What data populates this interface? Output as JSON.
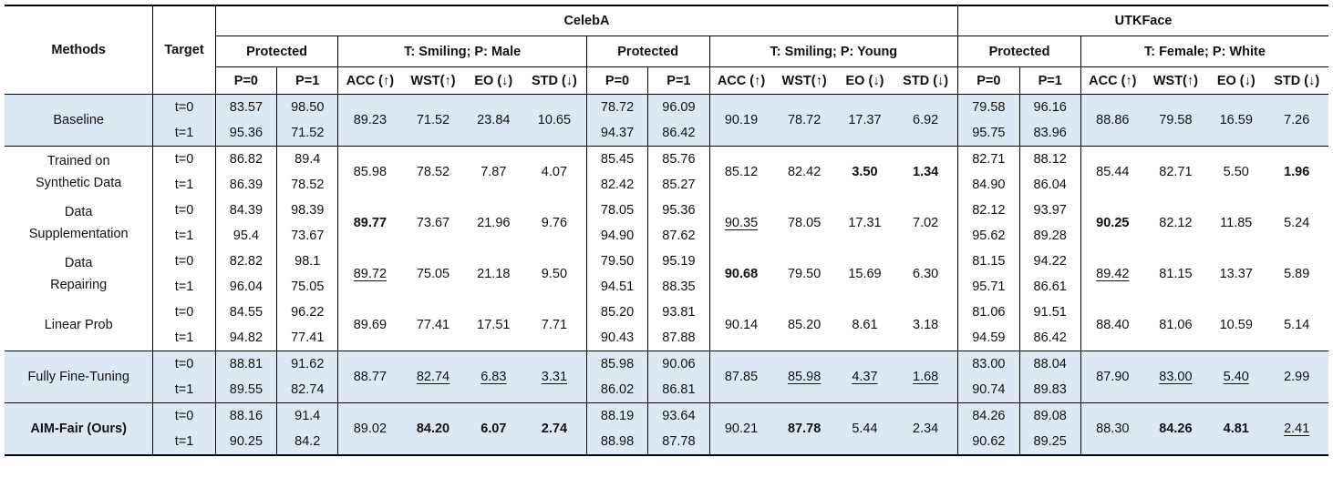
{
  "header": {
    "methods": "Methods",
    "target": "Target",
    "datasets": [
      "CelebA",
      "UTKFace"
    ],
    "protected": "Protected",
    "tasks": [
      "T: Smiling; P: Male",
      "T: Smiling; P: Young",
      "T: Female; P: White"
    ],
    "p0": "P=0",
    "p1": "P=1",
    "metrics": [
      "ACC (↑)",
      "WST(↑)",
      "EO (↓)",
      "STD (↓)"
    ]
  },
  "t_labels": [
    "t=0",
    "t=1"
  ],
  "rows": [
    {
      "method": [
        "Baseline"
      ],
      "shaded": true,
      "groups": [
        {
          "prot": [
            [
              "83.57",
              "98.50"
            ],
            [
              "95.36",
              "71.52"
            ]
          ],
          "metrics": [
            "89.23",
            "71.52",
            "23.84",
            "10.65"
          ]
        },
        {
          "prot": [
            [
              "78.72",
              "96.09"
            ],
            [
              "94.37",
              "86.42"
            ]
          ],
          "metrics": [
            "90.19",
            "78.72",
            "17.37",
            "6.92"
          ]
        },
        {
          "prot": [
            [
              "79.58",
              "96.16"
            ],
            [
              "95.75",
              "83.96"
            ]
          ],
          "metrics": [
            "88.86",
            "79.58",
            "16.59",
            "7.26"
          ]
        }
      ]
    },
    {
      "method": [
        "Trained on",
        "Synthetic Data"
      ],
      "shaded": false,
      "groups": [
        {
          "prot": [
            [
              "86.82",
              "89.4"
            ],
            [
              "86.39",
              "78.52"
            ]
          ],
          "metrics": [
            "85.98",
            "78.52",
            "7.87",
            "4.07"
          ]
        },
        {
          "prot": [
            [
              "85.45",
              "85.76"
            ],
            [
              "82.42",
              "85.27"
            ]
          ],
          "metrics": [
            "85.12",
            "82.42",
            "3.50",
            "1.34"
          ],
          "bold": [
            2,
            3
          ]
        },
        {
          "prot": [
            [
              "82.71",
              "88.12"
            ],
            [
              "84.90",
              "86.04"
            ]
          ],
          "metrics": [
            "85.44",
            "82.71",
            "5.50",
            "1.96"
          ],
          "bold": [
            3
          ]
        }
      ]
    },
    {
      "method": [
        "Data",
        "Supplementation"
      ],
      "shaded": false,
      "groups": [
        {
          "prot": [
            [
              "84.39",
              "98.39"
            ],
            [
              "95.4",
              "73.67"
            ]
          ],
          "metrics": [
            "89.77",
            "73.67",
            "21.96",
            "9.76"
          ],
          "bold": [
            0
          ]
        },
        {
          "prot": [
            [
              "78.05",
              "95.36"
            ],
            [
              "94.90",
              "87.62"
            ]
          ],
          "metrics": [
            "90.35",
            "78.05",
            "17.31",
            "7.02"
          ],
          "ul": [
            0
          ]
        },
        {
          "prot": [
            [
              "82.12",
              "93.97"
            ],
            [
              "95.62",
              "89.28"
            ]
          ],
          "metrics": [
            "90.25",
            "82.12",
            "11.85",
            "5.24"
          ],
          "bold": [
            0
          ]
        }
      ]
    },
    {
      "method": [
        "Data",
        "Repairing"
      ],
      "shaded": false,
      "groups": [
        {
          "prot": [
            [
              "82.82",
              "98.1"
            ],
            [
              "96.04",
              "75.05"
            ]
          ],
          "metrics": [
            "89.72",
            "75.05",
            "21.18",
            "9.50"
          ],
          "ul": [
            0
          ]
        },
        {
          "prot": [
            [
              "79.50",
              "95.19"
            ],
            [
              "94.51",
              "88.35"
            ]
          ],
          "metrics": [
            "90.68",
            "79.50",
            "15.69",
            "6.30"
          ],
          "bold": [
            0
          ]
        },
        {
          "prot": [
            [
              "81.15",
              "94.22"
            ],
            [
              "95.71",
              "86.61"
            ]
          ],
          "metrics": [
            "89.42",
            "81.15",
            "13.37",
            "5.89"
          ],
          "ul": [
            0
          ]
        }
      ]
    },
    {
      "method": [
        "Linear Prob"
      ],
      "shaded": false,
      "groups": [
        {
          "prot": [
            [
              "84.55",
              "96.22"
            ],
            [
              "94.82",
              "77.41"
            ]
          ],
          "metrics": [
            "89.69",
            "77.41",
            "17.51",
            "7.71"
          ]
        },
        {
          "prot": [
            [
              "85.20",
              "93.81"
            ],
            [
              "90.43",
              "87.88"
            ]
          ],
          "metrics": [
            "90.14",
            "85.20",
            "8.61",
            "3.18"
          ]
        },
        {
          "prot": [
            [
              "81.06",
              "91.51"
            ],
            [
              "94.59",
              "86.42"
            ]
          ],
          "metrics": [
            "88.40",
            "81.06",
            "10.59",
            "5.14"
          ]
        }
      ]
    },
    {
      "method": [
        "Fully Fine-Tuning"
      ],
      "shaded": true,
      "groups": [
        {
          "prot": [
            [
              "88.81",
              "91.62"
            ],
            [
              "89.55",
              "82.74"
            ]
          ],
          "metrics": [
            "88.77",
            "82.74",
            "6.83",
            "3.31"
          ],
          "ul": [
            1,
            2,
            3
          ]
        },
        {
          "prot": [
            [
              "85.98",
              "90.06"
            ],
            [
              "86.02",
              "86.81"
            ]
          ],
          "metrics": [
            "87.85",
            "85.98",
            "4.37",
            "1.68"
          ],
          "ul": [
            1,
            2,
            3
          ]
        },
        {
          "prot": [
            [
              "83.00",
              "88.04"
            ],
            [
              "90.74",
              "89.83"
            ]
          ],
          "metrics": [
            "87.90",
            "83.00",
            "5.40",
            "2.99"
          ],
          "ul": [
            1,
            2
          ]
        }
      ]
    },
    {
      "method": [
        "AIM-Fair (Ours)"
      ],
      "shaded": true,
      "method_bold": true,
      "groups": [
        {
          "prot": [
            [
              "88.16",
              "91.4"
            ],
            [
              "90.25",
              "84.2"
            ]
          ],
          "metrics": [
            "89.02",
            "84.20",
            "6.07",
            "2.74"
          ],
          "bold": [
            1,
            2,
            3
          ]
        },
        {
          "prot": [
            [
              "88.19",
              "93.64"
            ],
            [
              "88.98",
              "87.78"
            ]
          ],
          "metrics": [
            "90.21",
            "87.78",
            "5.44",
            "2.34"
          ],
          "bold": [
            1
          ]
        },
        {
          "prot": [
            [
              "84.26",
              "89.08"
            ],
            [
              "90.62",
              "89.25"
            ]
          ],
          "metrics": [
            "88.30",
            "84.26",
            "4.81",
            "2.41"
          ],
          "bold": [
            1,
            2
          ],
          "ul": [
            3
          ]
        }
      ]
    }
  ]
}
